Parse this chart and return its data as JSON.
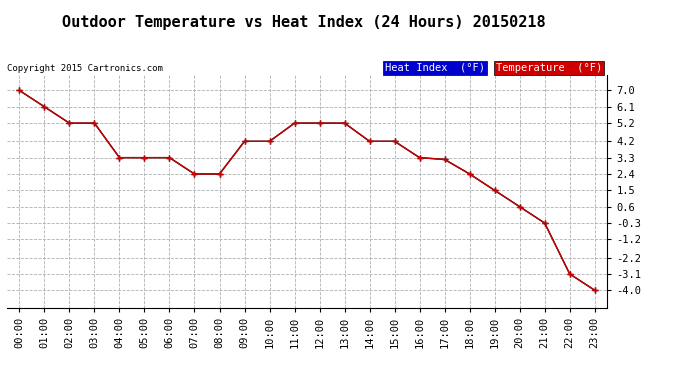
{
  "title": "Outdoor Temperature vs Heat Index (24 Hours) 20150218",
  "copyright": "Copyright 2015 Cartronics.com",
  "hours": [
    "00:00",
    "01:00",
    "02:00",
    "03:00",
    "04:00",
    "05:00",
    "06:00",
    "07:00",
    "08:00",
    "09:00",
    "10:00",
    "11:00",
    "12:00",
    "13:00",
    "14:00",
    "15:00",
    "16:00",
    "17:00",
    "18:00",
    "19:00",
    "20:00",
    "21:00",
    "22:00",
    "23:00"
  ],
  "temperature": [
    7.0,
    6.1,
    5.2,
    5.2,
    3.3,
    3.3,
    3.3,
    2.4,
    2.4,
    4.2,
    4.2,
    5.2,
    5.2,
    5.2,
    4.2,
    4.2,
    3.3,
    3.2,
    2.4,
    1.5,
    0.6,
    -0.3,
    -3.1,
    -4.0
  ],
  "heat_index": [
    7.0,
    6.1,
    5.2,
    5.2,
    3.3,
    3.3,
    3.3,
    2.4,
    2.4,
    4.2,
    4.2,
    5.2,
    5.2,
    5.2,
    4.2,
    4.2,
    3.3,
    3.2,
    2.4,
    1.5,
    0.6,
    -0.3,
    -3.1,
    -4.0
  ],
  "temp_color": "#cc0000",
  "heat_index_color": "#000000",
  "background_color": "#ffffff",
  "grid_color": "#b0b0b0",
  "ylim_min": -4.95,
  "ylim_max": 7.85,
  "yticks": [
    7.0,
    6.1,
    5.2,
    4.2,
    3.3,
    2.4,
    1.5,
    0.6,
    -0.3,
    -1.2,
    -2.2,
    -3.1,
    -4.0
  ],
  "legend_heat_bg": "#0000cc",
  "legend_temp_bg": "#cc0000",
  "title_fontsize": 11,
  "tick_fontsize": 7.5,
  "copyright_fontsize": 6.5,
  "legend_fontsize": 7.5
}
